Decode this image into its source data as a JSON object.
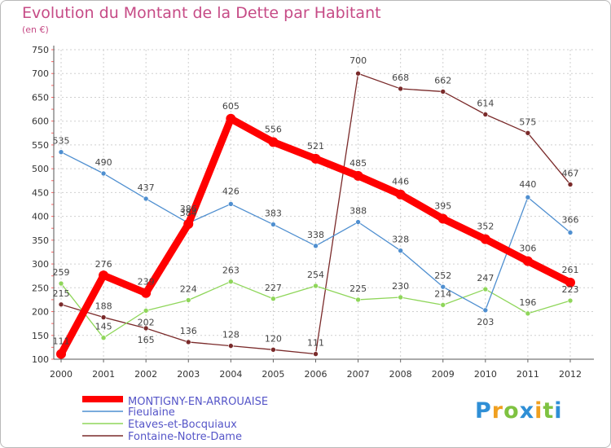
{
  "header": {
    "title": "Evolution du Montant de la Dette par Habitant",
    "subtitle": "(en €)"
  },
  "logo": {
    "letters": [
      "P",
      "r",
      "o",
      "x",
      "i",
      "t",
      "i"
    ],
    "colors": [
      "#2f8fd6",
      "#f0a020",
      "#7fc241",
      "#2f8fd6",
      "#f0a020",
      "#7fc241",
      "#2f8fd6"
    ]
  },
  "chart_data": {
    "type": "line",
    "x": [
      "2000",
      "2001",
      "2002",
      "2003",
      "2004",
      "2005",
      "2006",
      "2007",
      "2008",
      "2009",
      "2010",
      "2011",
      "2012"
    ],
    "ylim": [
      100,
      750
    ],
    "yticks": [
      100,
      150,
      200,
      250,
      300,
      350,
      400,
      450,
      500,
      550,
      600,
      650,
      700,
      750
    ],
    "grid": true,
    "legend_position": "bottom-left",
    "series": [
      {
        "name": "MONTIGNY-EN-ARROUAISE",
        "color": "#ff0000",
        "values": [
          111,
          276,
          239,
          384,
          605,
          556,
          521,
          485,
          446,
          395,
          352,
          306,
          261
        ],
        "labels": [
          "111",
          "276",
          "239",
          "384",
          "605",
          "556",
          "521",
          "485",
          "446",
          "395",
          "352",
          "306",
          "261"
        ]
      },
      {
        "name": "Fieulaine",
        "color": "#4f8fd0",
        "values": [
          535,
          490,
          437,
          386,
          426,
          383,
          338,
          388,
          328,
          252,
          203,
          440,
          366
        ],
        "labels": [
          "535",
          "490",
          "437",
          "386",
          "426",
          "383",
          "338",
          "388",
          "328",
          "252",
          "203",
          "440",
          "366"
        ]
      },
      {
        "name": "Etaves-et-Bocquiaux",
        "color": "#8fd65a",
        "values": [
          259,
          145,
          202,
          224,
          263,
          227,
          254,
          225,
          230,
          214,
          247,
          196,
          223
        ],
        "labels": [
          "259",
          "145",
          "202",
          "224",
          "263",
          "227",
          "254",
          "225",
          "230",
          "214",
          "247",
          "196",
          "223"
        ]
      },
      {
        "name": "Fontaine-Notre-Dame",
        "color": "#7a2a2a",
        "values": [
          215,
          188,
          165,
          136,
          128,
          120,
          111,
          700,
          668,
          662,
          614,
          575,
          467
        ],
        "labels": [
          "215",
          "188",
          "165",
          "136",
          "128",
          "120",
          "111",
          "700",
          "668",
          "662",
          "614",
          "575",
          "467"
        ]
      }
    ]
  }
}
